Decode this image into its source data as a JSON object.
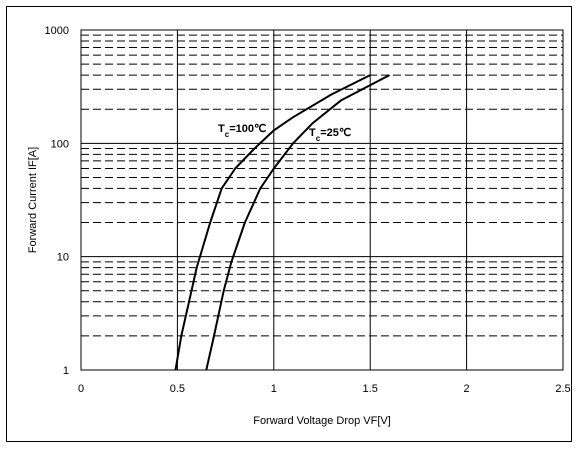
{
  "chart_data": {
    "type": "line",
    "xlabel": "Forward Voltage Drop VF[V]",
    "ylabel": "Forward Current IF[A]",
    "xlim": [
      0,
      2.5
    ],
    "ylim": [
      1,
      1000
    ],
    "yscale": "log",
    "x_ticks": [
      "0",
      "0.5",
      "1",
      "1.5",
      "2",
      "2.5"
    ],
    "y_ticks": [
      "1",
      "10",
      "100",
      "1000"
    ],
    "grid": "major solid, minor dashed",
    "series": [
      {
        "label_parts": {
          "main": "T",
          "sub": "c",
          "rest": "=100℃"
        },
        "points": [
          [
            0.49,
            1
          ],
          [
            0.52,
            2
          ],
          [
            0.56,
            4
          ],
          [
            0.6,
            8
          ],
          [
            0.67,
            20
          ],
          [
            0.73,
            40
          ],
          [
            0.8,
            60
          ],
          [
            0.9,
            90
          ],
          [
            1.0,
            130
          ],
          [
            1.1,
            170
          ],
          [
            1.3,
            270
          ],
          [
            1.5,
            400
          ]
        ]
      },
      {
        "label_parts": {
          "main": "T",
          "sub": "c",
          "rest": "=25℃"
        },
        "points": [
          [
            0.65,
            1
          ],
          [
            0.69,
            2
          ],
          [
            0.74,
            5
          ],
          [
            0.78,
            9
          ],
          [
            0.85,
            20
          ],
          [
            0.93,
            40
          ],
          [
            1.0,
            60
          ],
          [
            1.1,
            100
          ],
          [
            1.2,
            150
          ],
          [
            1.35,
            240
          ],
          [
            1.6,
            400
          ]
        ]
      }
    ]
  }
}
